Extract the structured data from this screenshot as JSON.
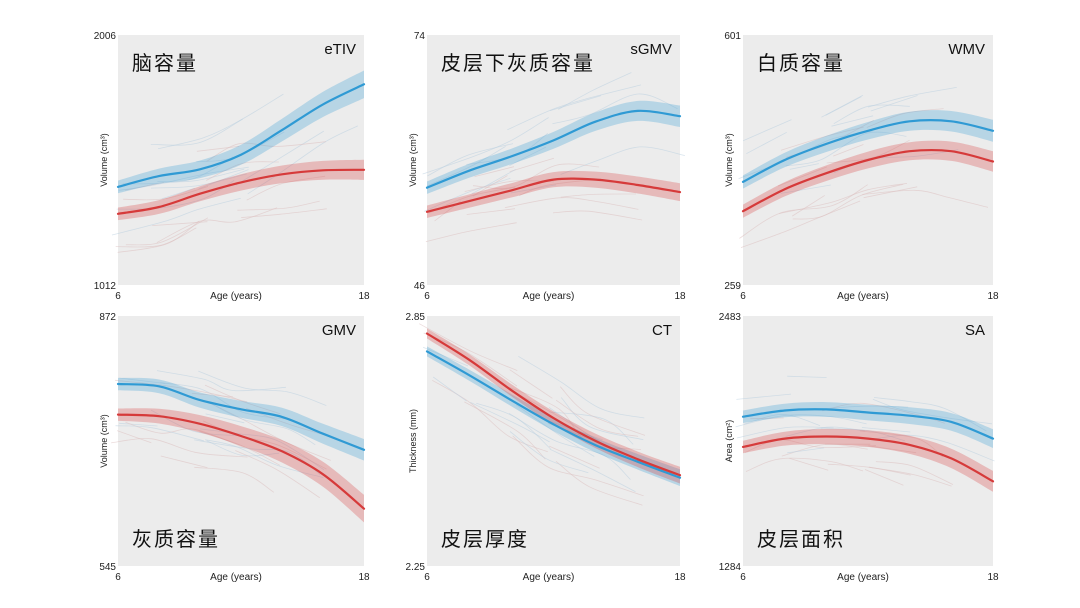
{
  "chart_data": [
    {
      "type": "line",
      "id": "etiv",
      "metric": "eTIV",
      "label_cn": "脑容量",
      "label_cn_pos": "top-left",
      "xlabel": "Age (years)",
      "ylabel": "Volume (cm³)",
      "xlim": [
        6,
        18
      ],
      "ylim": [
        1012,
        2006
      ],
      "x_ticks": [
        "6",
        "18"
      ],
      "y_ticks": [
        "1012",
        "2006"
      ],
      "x": [
        6,
        8,
        10,
        12,
        14,
        16,
        18
      ],
      "series": [
        {
          "name": "blue",
          "color": "#2f9ad4",
          "band": 25,
          "band_end": 55,
          "values": [
            1402,
            1445,
            1472,
            1530,
            1628,
            1730,
            1810
          ]
        },
        {
          "name": "red",
          "color": "#d63a3a",
          "band": 25,
          "band_end": 40,
          "values": [
            1295,
            1322,
            1375,
            1420,
            1452,
            1468,
            1470
          ]
        }
      ]
    },
    {
      "type": "line",
      "id": "sgmv",
      "metric": "sGMV",
      "label_cn": "皮层下灰质容量",
      "label_cn_pos": "top-left",
      "xlabel": "Age (years)",
      "ylabel": "Volume (cm³)",
      "xlim": [
        6,
        18
      ],
      "ylim": [
        46,
        74
      ],
      "x_ticks": [
        "6",
        "18"
      ],
      "y_ticks": [
        "46",
        "74"
      ],
      "x": [
        6,
        8,
        10,
        12,
        14,
        16,
        18
      ],
      "series": [
        {
          "name": "blue",
          "color": "#2f9ad4",
          "band": 0.7,
          "band_end": 1.2,
          "values": [
            56.9,
            58.8,
            60.4,
            62.2,
            64.3,
            65.5,
            64.9
          ]
        },
        {
          "name": "red",
          "color": "#d63a3a",
          "band": 0.7,
          "band_end": 1.0,
          "values": [
            54.2,
            55.4,
            56.6,
            57.8,
            57.8,
            57.2,
            56.4
          ]
        }
      ]
    },
    {
      "type": "line",
      "id": "wmv",
      "metric": "WMV",
      "label_cn": "白质容量",
      "label_cn_pos": "top-left",
      "xlabel": "Age (years)",
      "ylabel": "Volume (cm³)",
      "xlim": [
        6,
        18
      ],
      "ylim": [
        259,
        601
      ],
      "x_ticks": [
        "6",
        "18"
      ],
      "y_ticks": [
        "259",
        "601"
      ],
      "x": [
        6,
        8,
        10,
        12,
        14,
        16,
        18
      ],
      "series": [
        {
          "name": "blue",
          "color": "#2f9ad4",
          "band": 9,
          "band_end": 15,
          "values": [
            400,
            430,
            452,
            470,
            483,
            483,
            470
          ]
        },
        {
          "name": "red",
          "color": "#d63a3a",
          "band": 9,
          "band_end": 14,
          "values": [
            360,
            390,
            412,
            430,
            442,
            442,
            428
          ]
        }
      ]
    },
    {
      "type": "line",
      "id": "gmv",
      "metric": "GMV",
      "label_cn": "灰质容量",
      "label_cn_pos": "bottom-left",
      "xlabel": "Age (years)",
      "ylabel": "Volume (cm³)",
      "xlim": [
        6,
        18
      ],
      "ylim": [
        545,
        872
      ],
      "x_ticks": [
        "6",
        "18"
      ],
      "y_ticks": [
        "545",
        "872"
      ],
      "x": [
        6,
        8,
        10,
        12,
        14,
        16,
        18
      ],
      "series": [
        {
          "name": "blue",
          "color": "#2f9ad4",
          "band": 8,
          "band_end": 14,
          "values": [
            783,
            780,
            762,
            750,
            740,
            718,
            697
          ]
        },
        {
          "name": "red",
          "color": "#d63a3a",
          "band": 8,
          "band_end": 18,
          "values": [
            743,
            741,
            731,
            715,
            695,
            665,
            620
          ]
        }
      ]
    },
    {
      "type": "line",
      "id": "ct",
      "metric": "CT",
      "label_cn": "皮层厚度",
      "label_cn_pos": "bottom-left",
      "xlabel": "Age (years)",
      "ylabel": "Thickness (mm)",
      "xlim": [
        6,
        18
      ],
      "ylim": [
        2.25,
        2.85
      ],
      "x_ticks": [
        "6",
        "18"
      ],
      "y_ticks": [
        "2.25",
        "2.85"
      ],
      "x": [
        6,
        8,
        10,
        12,
        14,
        16,
        18
      ],
      "series": [
        {
          "name": "blue",
          "color": "#2f9ad4",
          "band": 0.012,
          "band_end": 0.02,
          "values": [
            2.765,
            2.708,
            2.648,
            2.59,
            2.54,
            2.5,
            2.462
          ]
        },
        {
          "name": "red",
          "color": "#d63a3a",
          "band": 0.012,
          "band_end": 0.02,
          "values": [
            2.808,
            2.745,
            2.672,
            2.605,
            2.55,
            2.506,
            2.468
          ]
        }
      ]
    },
    {
      "type": "line",
      "id": "sa",
      "metric": "SA",
      "label_cn": "皮层面积",
      "label_cn_pos": "bottom-left",
      "xlabel": "Age (years)",
      "ylabel": "Area (cm²)",
      "xlim": [
        6,
        18
      ],
      "ylim": [
        1284,
        2483
      ],
      "x_ticks": [
        "6",
        "18"
      ],
      "y_ticks": [
        "1284",
        "2483"
      ],
      "x": [
        6,
        8,
        10,
        12,
        14,
        16,
        18
      ],
      "series": [
        {
          "name": "blue",
          "color": "#2f9ad4",
          "band": 30,
          "band_end": 45,
          "values": [
            2000,
            2030,
            2035,
            2020,
            2005,
            1975,
            1895
          ]
        },
        {
          "name": "red",
          "color": "#d63a3a",
          "band": 30,
          "band_end": 50,
          "values": [
            1855,
            1895,
            1905,
            1895,
            1865,
            1800,
            1690
          ]
        }
      ]
    }
  ]
}
